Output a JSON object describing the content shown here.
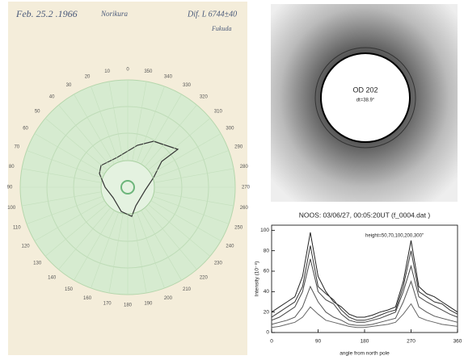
{
  "polar_sheet": {
    "date": "Feb. 25.2 .1966",
    "station": "Norikura",
    "line": "Dif. L 6744±40",
    "observer": "Fukuda",
    "angles": [
      0,
      10,
      20,
      30,
      40,
      50,
      60,
      70,
      80,
      90,
      100,
      110,
      120,
      130,
      140,
      150,
      160,
      170,
      180,
      190,
      200,
      210,
      220,
      230,
      240,
      250,
      260,
      270,
      280,
      290,
      300,
      310,
      320,
      330,
      340,
      350
    ]
  },
  "coronagraph": {
    "label": "OD 202",
    "detail": "dt=38.9°"
  },
  "chart_data": {
    "type": "line",
    "title": "NOOS: 03/06/27, 00:05:20UT (f_0004.dat )",
    "annotation": "height=50,70,100,200,300\"",
    "x_label": "angle from north pole",
    "y_label": "Intensity (10⁻⁸)",
    "x": [
      0,
      15,
      30,
      45,
      60,
      75,
      90,
      105,
      120,
      135,
      150,
      165,
      180,
      195,
      210,
      225,
      240,
      255,
      270,
      285,
      300,
      315,
      330,
      345,
      360
    ],
    "series": [
      {
        "color": "#222222",
        "values": [
          20,
          25,
          30,
          35,
          55,
          98,
          55,
          40,
          30,
          25,
          18,
          15,
          15,
          17,
          20,
          22,
          25,
          50,
          90,
          45,
          38,
          35,
          30,
          25,
          20
        ]
      },
      {
        "color": "#333333",
        "values": [
          15,
          20,
          25,
          30,
          45,
          85,
          45,
          38,
          32,
          22,
          15,
          12,
          12,
          14,
          17,
          20,
          22,
          45,
          80,
          40,
          35,
          30,
          28,
          22,
          18
        ]
      },
      {
        "color": "#444444",
        "values": [
          12,
          15,
          20,
          25,
          40,
          72,
          40,
          32,
          28,
          18,
          12,
          10,
          10,
          12,
          14,
          17,
          20,
          40,
          65,
          35,
          30,
          26,
          22,
          18,
          15
        ]
      },
      {
        "color": "#555555",
        "values": [
          8,
          10,
          12,
          15,
          25,
          45,
          30,
          20,
          15,
          12,
          8,
          7,
          7,
          8,
          10,
          12,
          14,
          30,
          50,
          25,
          20,
          16,
          14,
          12,
          10
        ]
      },
      {
        "color": "#666666",
        "values": [
          5,
          6,
          8,
          10,
          15,
          25,
          18,
          12,
          10,
          8,
          6,
          5,
          5,
          6,
          7,
          8,
          10,
          18,
          28,
          15,
          12,
          10,
          8,
          7,
          6
        ]
      }
    ],
    "xlim": [
      0,
      360
    ],
    "xticks": [
      0,
      90,
      180,
      270,
      360
    ],
    "ylim": [
      0,
      105
    ],
    "yticks": [
      0,
      20,
      40,
      60,
      80,
      100
    ]
  }
}
